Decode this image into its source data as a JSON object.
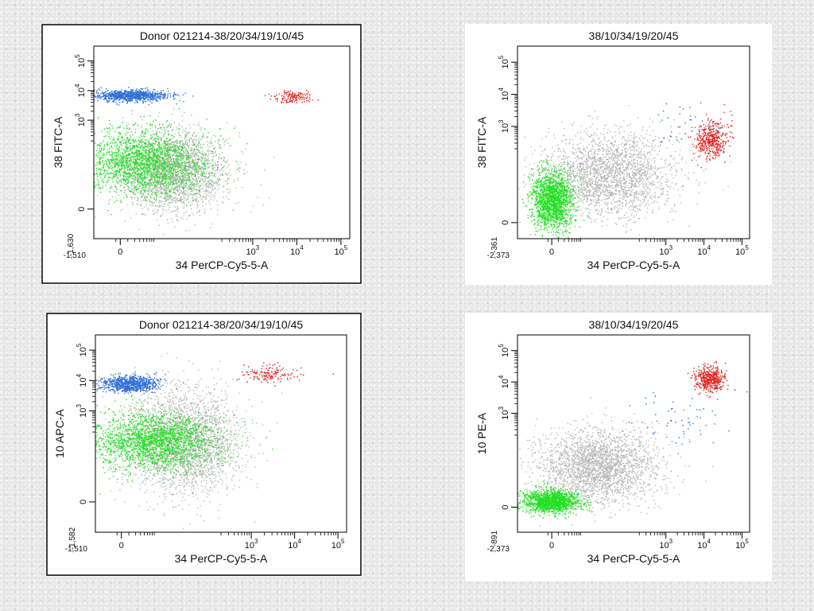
{
  "colors": {
    "background": "#ffffff",
    "ungated": "#b9b9b9",
    "blue": "#2f6fd6",
    "red": "#e0201c",
    "green": "#22e022",
    "frame": "#000000"
  },
  "chart_data": [
    {
      "type": "scatter",
      "title": "Donor 021214-38/20/34/19/10/45",
      "xlabel": "34 PerCP-Cy5-5-A",
      "ylabel": "38 FITC-A",
      "x_min_label": "-1,510",
      "y_min_label": "-1,630",
      "x_ticks": [
        {
          "v": 0,
          "exp": ""
        },
        {
          "v": 3,
          "exp": "3"
        },
        {
          "v": 4,
          "exp": "4"
        },
        {
          "v": 5,
          "exp": "5"
        }
      ],
      "y_ticks": [
        {
          "v": 0,
          "exp": ""
        },
        {
          "v": 3,
          "exp": "3"
        },
        {
          "v": 4,
          "exp": "4"
        },
        {
          "v": 5,
          "exp": "5"
        }
      ],
      "xlim": [
        -0.6,
        5.2
      ],
      "ylim": [
        -1.0,
        5.5
      ],
      "populations": [
        {
          "name": "ungated",
          "color": "#b9b9b9",
          "n": 2600,
          "cx": 1.2,
          "cy": 1.3,
          "sx": 1.0,
          "sy": 1.1
        },
        {
          "name": "blue",
          "color": "#2f6fd6",
          "n": 900,
          "cx": 0.25,
          "cy": 3.85,
          "sx": 0.7,
          "sy": 0.15
        },
        {
          "name": "red",
          "color": "#e0201c",
          "n": 140,
          "cx": 3.9,
          "cy": 3.8,
          "sx": 0.35,
          "sy": 0.18
        },
        {
          "name": "green",
          "color": "#22e022",
          "n": 2000,
          "cx": 0.5,
          "cy": 1.6,
          "sx": 1.2,
          "sy": 0.9
        }
      ]
    },
    {
      "type": "scatter",
      "title": "38/10/34/19/20/45",
      "xlabel": "34 PerCP-Cy5-5-A",
      "ylabel": "38 FITC-A",
      "x_min_label": "-2,373",
      "y_min_label": "-361",
      "x_ticks": [
        {
          "v": 0,
          "exp": ""
        },
        {
          "v": 3,
          "exp": "3"
        },
        {
          "v": 4,
          "exp": "4"
        },
        {
          "v": 5,
          "exp": "5"
        }
      ],
      "y_ticks": [
        {
          "v": 0,
          "exp": ""
        },
        {
          "v": 3,
          "exp": "3"
        },
        {
          "v": 4,
          "exp": "4"
        },
        {
          "v": 5,
          "exp": "5"
        }
      ],
      "xlim": [
        -0.9,
        5.2
      ],
      "ylim": [
        -0.5,
        5.5
      ],
      "populations": [
        {
          "name": "ungated",
          "color": "#b9b9b9",
          "n": 2400,
          "cx": 1.5,
          "cy": 1.5,
          "sx": 1.4,
          "sy": 1.1
        },
        {
          "name": "green",
          "color": "#22e022",
          "n": 1700,
          "cx": 0.0,
          "cy": 0.7,
          "sx": 0.45,
          "sy": 0.75
        },
        {
          "name": "red",
          "color": "#e0201c",
          "n": 420,
          "cx": 4.2,
          "cy": 2.6,
          "sx": 0.35,
          "sy": 0.5
        },
        {
          "name": "blue",
          "color": "#2f6fd6",
          "n": 40,
          "cx": 3.5,
          "cy": 3.0,
          "sx": 1.0,
          "sy": 0.6
        }
      ]
    },
    {
      "type": "scatter",
      "title": "Donor 021214-38/20/34/19/10/45",
      "xlabel": "34 PerCP-Cy5-5-A",
      "ylabel": "10 APC-A",
      "x_min_label": "-1,510",
      "y_min_label": "-1,582",
      "x_ticks": [
        {
          "v": 0,
          "exp": ""
        },
        {
          "v": 3,
          "exp": "3"
        },
        {
          "v": 4,
          "exp": "4"
        },
        {
          "v": 5,
          "exp": "5"
        }
      ],
      "y_ticks": [
        {
          "v": 0,
          "exp": ""
        },
        {
          "v": 3,
          "exp": "3"
        },
        {
          "v": 4,
          "exp": "4"
        },
        {
          "v": 5,
          "exp": "5"
        }
      ],
      "xlim": [
        -0.6,
        5.2
      ],
      "ylim": [
        -1.0,
        5.5
      ],
      "populations": [
        {
          "name": "ungated",
          "color": "#b9b9b9",
          "n": 2800,
          "cx": 1.4,
          "cy": 2.0,
          "sx": 1.1,
          "sy": 1.4
        },
        {
          "name": "blue",
          "color": "#2f6fd6",
          "n": 850,
          "cx": 0.2,
          "cy": 3.9,
          "sx": 0.55,
          "sy": 0.22
        },
        {
          "name": "red",
          "color": "#e0201c",
          "n": 140,
          "cx": 3.4,
          "cy": 4.2,
          "sx": 0.6,
          "sy": 0.25
        },
        {
          "name": "green",
          "color": "#22e022",
          "n": 2000,
          "cx": 0.7,
          "cy": 2.0,
          "sx": 1.2,
          "sy": 0.8
        }
      ]
    },
    {
      "type": "scatter",
      "title": "38/10/34/19/20/45",
      "xlabel": "34 PerCP-Cy5-5-A",
      "ylabel": "10 PE-A",
      "x_min_label": "-2,373",
      "y_min_label": "-891",
      "x_ticks": [
        {
          "v": 0,
          "exp": ""
        },
        {
          "v": 3,
          "exp": "3"
        },
        {
          "v": 4,
          "exp": "4"
        },
        {
          "v": 5,
          "exp": "5"
        }
      ],
      "y_ticks": [
        {
          "v": 0,
          "exp": ""
        },
        {
          "v": 3,
          "exp": "3"
        },
        {
          "v": 4,
          "exp": "4"
        },
        {
          "v": 5,
          "exp": "5"
        }
      ],
      "xlim": [
        -0.9,
        5.2
      ],
      "ylim": [
        -0.8,
        5.5
      ],
      "populations": [
        {
          "name": "ungated",
          "color": "#b9b9b9",
          "n": 2600,
          "cx": 1.2,
          "cy": 1.3,
          "sx": 1.3,
          "sy": 1.0
        },
        {
          "name": "green",
          "color": "#22e022",
          "n": 1500,
          "cx": 0.0,
          "cy": 0.2,
          "sx": 0.6,
          "sy": 0.3
        },
        {
          "name": "red",
          "color": "#e0201c",
          "n": 450,
          "cx": 4.15,
          "cy": 4.1,
          "sx": 0.3,
          "sy": 0.35
        },
        {
          "name": "blue",
          "color": "#2f6fd6",
          "n": 60,
          "cx": 3.3,
          "cy": 2.8,
          "sx": 1.1,
          "sy": 0.7
        }
      ]
    }
  ]
}
